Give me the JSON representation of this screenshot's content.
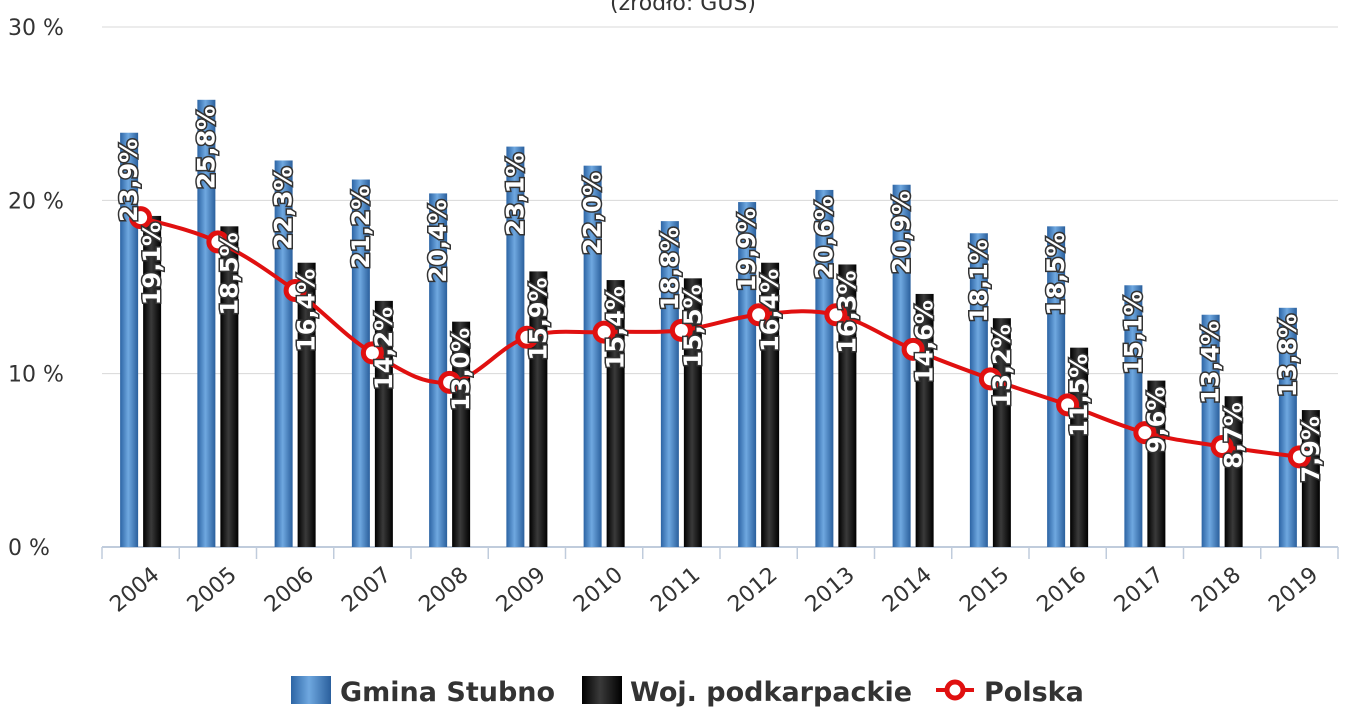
{
  "chart_data": {
    "type": "bar",
    "subtitle": "(źródło: GUS)",
    "categories": [
      "2004",
      "2005",
      "2006",
      "2007",
      "2008",
      "2009",
      "2010",
      "2011",
      "2012",
      "2013",
      "2014",
      "2015",
      "2016",
      "2017",
      "2018",
      "2019"
    ],
    "y_tick_labels": [
      "0 %",
      "10 %",
      "20 %",
      "30 %"
    ],
    "ylim": [
      0,
      30
    ],
    "grid": true,
    "legend_position": "bottom",
    "series": [
      {
        "name": "Gmina Stubno",
        "type": "bar",
        "color": "#4a87c8",
        "values": [
          23.9,
          25.8,
          22.3,
          21.2,
          20.4,
          23.1,
          22.0,
          18.8,
          19.9,
          20.6,
          20.9,
          18.1,
          18.5,
          15.1,
          13.4,
          13.8
        ],
        "labels": [
          "23,9%",
          "25,8%",
          "22,3%",
          "21,2%",
          "20,4%",
          "23,1%",
          "22,0%",
          "18,8%",
          "19,9%",
          "20,6%",
          "20,9%",
          "18,1%",
          "18,5%",
          "15,1%",
          "13,4%",
          "13,8%"
        ]
      },
      {
        "name": "Woj. podkarpackie",
        "type": "bar",
        "color": "#1a1a1a",
        "values": [
          19.1,
          18.5,
          16.4,
          14.2,
          13.0,
          15.9,
          15.4,
          15.5,
          16.4,
          16.3,
          14.6,
          13.2,
          11.5,
          9.6,
          8.7,
          7.9
        ],
        "labels": [
          "19,1%",
          "18,5%",
          "16,4%",
          "14,2%",
          "13,0%",
          "15,9%",
          "15,4%",
          "15,5%",
          "16,4%",
          "16,3%",
          "14,6%",
          "13,2%",
          "11,5%",
          "9,6%",
          "8,7%",
          "7,9%"
        ]
      },
      {
        "name": "Polska",
        "type": "line",
        "color": "#e01010",
        "values": [
          19.0,
          17.6,
          14.8,
          11.2,
          9.5,
          12.1,
          12.4,
          12.5,
          13.4,
          13.4,
          11.4,
          9.7,
          8.2,
          6.6,
          5.8,
          5.2
        ]
      }
    ]
  }
}
